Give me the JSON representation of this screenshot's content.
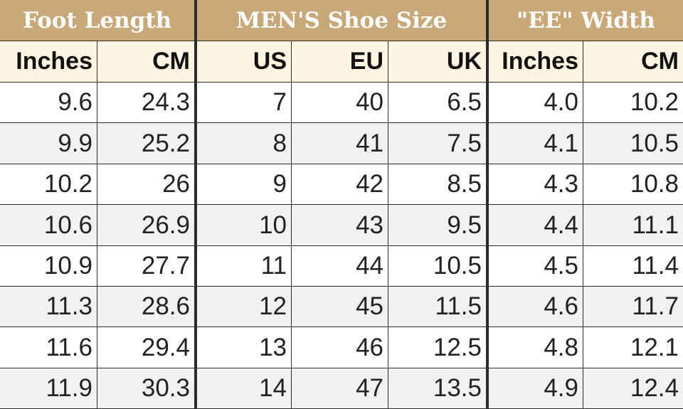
{
  "header": {
    "groups": [
      {
        "label": "Foot Length",
        "span": 2
      },
      {
        "label": "MEN'S Shoe Size",
        "span": 3
      },
      {
        "label": "\"EE\" Width",
        "span": 2
      }
    ],
    "columns": [
      "Inches",
      "CM",
      "US",
      "EU",
      "UK",
      "Inches",
      "CM"
    ]
  },
  "table": {
    "rows": [
      [
        "9.6",
        "24.3",
        "7",
        "40",
        "6.5",
        "4.0",
        "10.2"
      ],
      [
        "9.9",
        "25.2",
        "8",
        "41",
        "7.5",
        "4.1",
        "10.5"
      ],
      [
        "10.2",
        "26",
        "9",
        "42",
        "8.5",
        "4.3",
        "10.8"
      ],
      [
        "10.6",
        "26.9",
        "10",
        "43",
        "9.5",
        "4.4",
        "11.1"
      ],
      [
        "10.9",
        "27.7",
        "11",
        "44",
        "10.5",
        "4.5",
        "11.4"
      ],
      [
        "11.3",
        "28.6",
        "12",
        "45",
        "11.5",
        "4.6",
        "11.7"
      ],
      [
        "11.6",
        "29.4",
        "13",
        "46",
        "12.5",
        "4.8",
        "12.1"
      ],
      [
        "11.9",
        "30.3",
        "14",
        "47",
        "13.5",
        "4.9",
        "12.4"
      ]
    ]
  }
}
